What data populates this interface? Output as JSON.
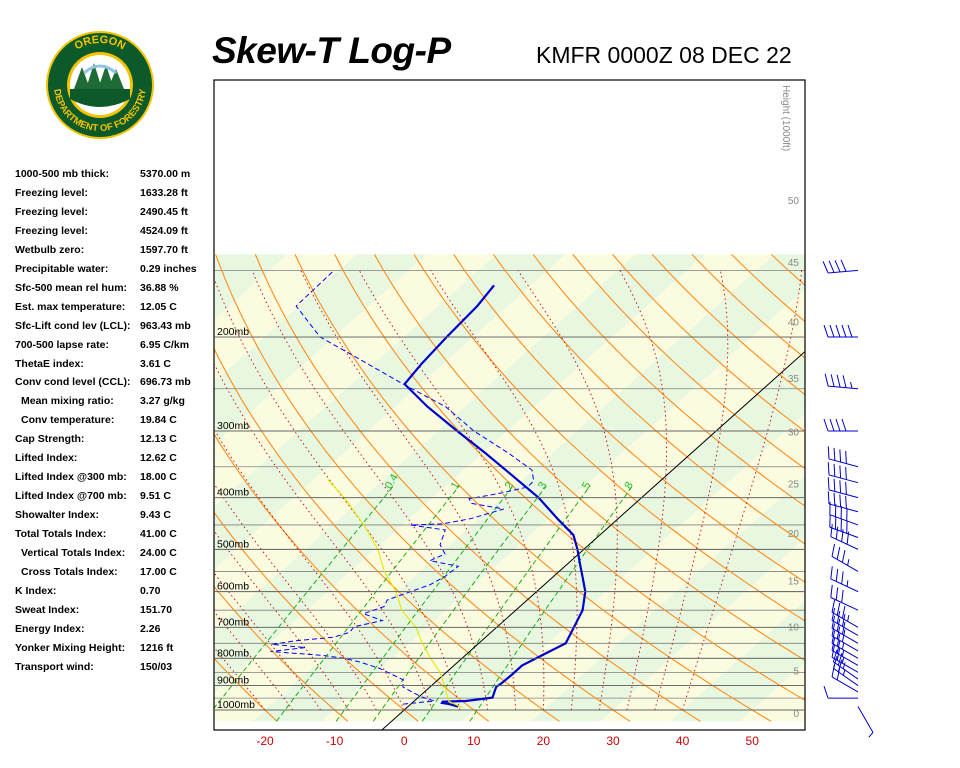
{
  "title": "Skew-T Log-P",
  "station": "KMFR 0000Z 08 DEC 22",
  "logo": {
    "line1": "OREGON",
    "line2": "DEPARTMENT OF FORESTRY"
  },
  "indices": [
    {
      "label": "1000-500 mb thick:",
      "value": "5370.00 m"
    },
    {
      "label": "Freezing level:",
      "value": "1633.28 ft"
    },
    {
      "label": "Freezing level:",
      "value": "2490.45 ft"
    },
    {
      "label": "Freezing level:",
      "value": "4524.09 ft"
    },
    {
      "label": "Wetbulb zero:",
      "value": "1597.70 ft"
    },
    {
      "label": "Precipitable water:",
      "value": "0.29 inches"
    },
    {
      "label": "Sfc-500 mean rel hum:",
      "value": "36.88 %"
    },
    {
      "label": "Est. max temperature:",
      "value": "12.05 C"
    },
    {
      "label": "Sfc-Lift cond lev (LCL):",
      "value": "963.43 mb"
    },
    {
      "label": "700-500 lapse rate:",
      "value": "6.95 C/km"
    },
    {
      "label": "ThetaE index:",
      "value": "3.61 C"
    },
    {
      "label": "Conv cond level (CCL):",
      "value": "696.73 mb"
    },
    {
      "label": "Mean mixing ratio:",
      "value": "3.27 g/kg",
      "sub": true
    },
    {
      "label": "Conv temperature:",
      "value": "19.84 C",
      "sub": true
    },
    {
      "label": "Cap Strength:",
      "value": "12.13 C"
    },
    {
      "label": "Lifted Index:",
      "value": "12.62 C"
    },
    {
      "label": "Lifted Index @300 mb:",
      "value": "18.00 C"
    },
    {
      "label": "Lifted Index @700 mb:",
      "value": "9.51 C"
    },
    {
      "label": "Showalter Index:",
      "value": "9.43 C"
    },
    {
      "label": "Total Totals Index:",
      "value": "41.00 C"
    },
    {
      "label": "Vertical Totals Index:",
      "value": "24.00 C",
      "sub": true
    },
    {
      "label": "Cross Totals Index:",
      "value": "17.00 C",
      "sub": true
    },
    {
      "label": "K Index:",
      "value": "0.70"
    },
    {
      "label": "Sweat Index:",
      "value": "151.70"
    },
    {
      "label": "Energy Index:",
      "value": "2.26"
    },
    {
      "label": "Yonker Mixing Height:",
      "value": "1216 ft"
    },
    {
      "label": "Transport wind:",
      "value": "150/03"
    }
  ],
  "colors": {
    "temperature": "#0000cc",
    "dewpoint": "#0000ff",
    "parcel": "#e6e600",
    "dry_adiabat": "#ff8c1a",
    "moist_adiabat": "#cc0000",
    "mixing_ratio": "#00aa00",
    "isotherm": "#000000",
    "zone_green": "#e8f8e0",
    "zone_yellow": "#fbfbe0"
  },
  "chart_data": {
    "type": "line",
    "title": "Skew-T Log-P",
    "xlabel": "",
    "ylabel": "",
    "y_scale": "log",
    "x_ticks": [
      -20,
      -10,
      0,
      10,
      20,
      30,
      40,
      50
    ],
    "pressure_levels": [
      {
        "label": "200mb",
        "p": 200
      },
      {
        "label": "300mb",
        "p": 300
      },
      {
        "label": "400mb",
        "p": 400
      },
      {
        "label": "500mb",
        "p": 500
      },
      {
        "label": "600mb",
        "p": 600
      },
      {
        "label": "700mb",
        "p": 700
      },
      {
        "label": "800mb",
        "p": 800
      },
      {
        "label": "900mb",
        "p": 900
      },
      {
        "label": "1000mb",
        "p": 1000
      }
    ],
    "height_axis": {
      "label": "Height (1000ft)",
      "ticks": [
        0,
        5,
        10,
        15,
        20,
        25,
        30,
        35,
        40,
        45,
        50
      ]
    },
    "mixing_ratio_labels": [
      "0.4",
      "1",
      "2",
      "3",
      "5",
      "8"
    ],
    "series": [
      {
        "name": "",
        "style": "solid",
        "points": [
          {
            "p": 985,
            "t": 7.2
          },
          {
            "p": 975,
            "t": 5.5
          },
          {
            "p": 970,
            "t": 4.3
          },
          {
            "p": 965,
            "t": 4.2
          },
          {
            "p": 962,
            "t": 7.4
          },
          {
            "p": 948,
            "t": 10.7
          },
          {
            "p": 930,
            "t": 10.2
          },
          {
            "p": 905,
            "t": 9.5
          },
          {
            "p": 890,
            "t": 9.7
          },
          {
            "p": 860,
            "t": 9.8
          },
          {
            "p": 825,
            "t": 9.8
          },
          {
            "p": 790,
            "t": 11.0
          },
          {
            "p": 750,
            "t": 12.5
          },
          {
            "p": 700,
            "t": 11.1
          },
          {
            "p": 650,
            "t": 9.6
          },
          {
            "p": 600,
            "t": 7.0
          },
          {
            "p": 565,
            "t": 4.4
          },
          {
            "p": 530,
            "t": 1.6
          },
          {
            "p": 500,
            "t": -0.9
          },
          {
            "p": 470,
            "t": -3.8
          },
          {
            "p": 440,
            "t": -8.4
          },
          {
            "p": 400,
            "t": -14.8
          },
          {
            "p": 360,
            "t": -22.9
          },
          {
            "p": 330,
            "t": -29.6
          },
          {
            "p": 300,
            "t": -37.2
          },
          {
            "p": 270,
            "t": -45.4
          },
          {
            "p": 245,
            "t": -52.3
          },
          {
            "p": 225,
            "t": -53.1
          },
          {
            "p": 200,
            "t": -53.8
          },
          {
            "p": 175,
            "t": -54.4
          },
          {
            "p": 160,
            "t": -55.3
          }
        ]
      },
      {
        "name": "",
        "style": "dashed",
        "points": [
          {
            "p": 975,
            "t": -1.1
          },
          {
            "p": 962,
            "t": 2.9
          },
          {
            "p": 945,
            "t": 0.4
          },
          {
            "p": 925,
            "t": -1.8
          },
          {
            "p": 905,
            "t": -3.9
          },
          {
            "p": 878,
            "t": -5.0
          },
          {
            "p": 860,
            "t": -7.2
          },
          {
            "p": 835,
            "t": -10.3
          },
          {
            "p": 812,
            "t": -14.3
          },
          {
            "p": 800,
            "t": -16.9
          },
          {
            "p": 790,
            "t": -20.5
          },
          {
            "p": 777,
            "t": -28.6
          },
          {
            "p": 764,
            "t": -24.2
          },
          {
            "p": 753,
            "t": -29.6
          },
          {
            "p": 742,
            "t": -26.7
          },
          {
            "p": 730,
            "t": -21.8
          },
          {
            "p": 715,
            "t": -20.3
          },
          {
            "p": 698,
            "t": -20.6
          },
          {
            "p": 680,
            "t": -17.5
          },
          {
            "p": 660,
            "t": -21.3
          },
          {
            "p": 640,
            "t": -19.5
          },
          {
            "p": 622,
            "t": -20.1
          },
          {
            "p": 600,
            "t": -18.1
          },
          {
            "p": 582,
            "t": -16.4
          },
          {
            "p": 562,
            "t": -15.6
          },
          {
            "p": 538,
            "t": -15.3
          },
          {
            "p": 525,
            "t": -20.3
          },
          {
            "p": 510,
            "t": -19.2
          },
          {
            "p": 490,
            "t": -21.4
          },
          {
            "p": 460,
            "t": -23.0
          },
          {
            "p": 450,
            "t": -28.8
          },
          {
            "p": 448,
            "t": -24.4
          },
          {
            "p": 438,
            "t": -21.2
          },
          {
            "p": 420,
            "t": -18.0
          },
          {
            "p": 410,
            "t": -23.5
          },
          {
            "p": 402,
            "t": -24.6
          },
          {
            "p": 392,
            "t": -20.9
          },
          {
            "p": 382,
            "t": -18.1
          },
          {
            "p": 372,
            "t": -18.2
          },
          {
            "p": 355,
            "t": -20.2
          },
          {
            "p": 330,
            "t": -26.3
          },
          {
            "p": 300,
            "t": -34.8
          },
          {
            "p": 270,
            "t": -42.8
          },
          {
            "p": 245,
            "t": -52.5
          },
          {
            "p": 220,
            "t": -62.8
          },
          {
            "p": 200,
            "t": -72.0
          },
          {
            "p": 175,
            "t": -80.4
          },
          {
            "p": 150,
            "t": -80.7
          }
        ]
      },
      {
        "name": "",
        "style": "parcel",
        "points": [
          {
            "p": 990,
            "t": 8.0
          },
          {
            "p": 963,
            "t": 5.0
          },
          {
            "p": 900,
            "t": 1.9
          },
          {
            "p": 850,
            "t": -0.9
          },
          {
            "p": 800,
            "t": -4.5
          },
          {
            "p": 750,
            "t": -8.1
          },
          {
            "p": 700,
            "t": -11.6
          },
          {
            "p": 650,
            "t": -16.4
          },
          {
            "p": 600,
            "t": -20.2
          },
          {
            "p": 550,
            "t": -25.1
          },
          {
            "p": 500,
            "t": -29.6
          },
          {
            "p": 450,
            "t": -35.5
          },
          {
            "p": 400,
            "t": -42.7
          },
          {
            "p": 370,
            "t": -48.0
          }
        ]
      }
    ],
    "wind_barbs": [
      {
        "p": 985,
        "dir": 150,
        "spd": 3
      },
      {
        "p": 950,
        "dir": 270,
        "spd": 12
      },
      {
        "p": 925,
        "dir": 300,
        "spd": 20
      },
      {
        "p": 900,
        "dir": 305,
        "spd": 25
      },
      {
        "p": 875,
        "dir": 305,
        "spd": 25
      },
      {
        "p": 850,
        "dir": 300,
        "spd": 25
      },
      {
        "p": 825,
        "dir": 300,
        "spd": 25
      },
      {
        "p": 800,
        "dir": 300,
        "spd": 25
      },
      {
        "p": 775,
        "dir": 300,
        "spd": 30
      },
      {
        "p": 750,
        "dir": 300,
        "spd": 30
      },
      {
        "p": 725,
        "dir": 300,
        "spd": 30
      },
      {
        "p": 700,
        "dir": 300,
        "spd": 35
      },
      {
        "p": 650,
        "dir": 295,
        "spd": 30
      },
      {
        "p": 600,
        "dir": 295,
        "spd": 35
      },
      {
        "p": 550,
        "dir": 300,
        "spd": 35
      },
      {
        "p": 500,
        "dir": 295,
        "spd": 40
      },
      {
        "p": 475,
        "dir": 290,
        "spd": 40
      },
      {
        "p": 450,
        "dir": 290,
        "spd": 40
      },
      {
        "p": 425,
        "dir": 285,
        "spd": 40
      },
      {
        "p": 400,
        "dir": 285,
        "spd": 40
      },
      {
        "p": 375,
        "dir": 285,
        "spd": 40
      },
      {
        "p": 350,
        "dir": 285,
        "spd": 40
      },
      {
        "p": 300,
        "dir": 270,
        "spd": 40
      },
      {
        "p": 250,
        "dir": 275,
        "spd": 45
      },
      {
        "p": 200,
        "dir": 270,
        "spd": 50
      },
      {
        "p": 150,
        "dir": 265,
        "spd": 40
      }
    ]
  }
}
